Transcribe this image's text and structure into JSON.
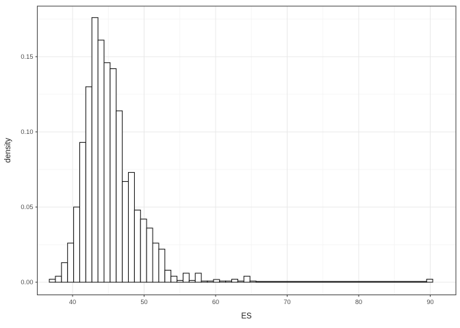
{
  "chart_data": {
    "type": "bar",
    "subtype": "histogram",
    "title": "",
    "xlabel": "ES",
    "ylabel": "density",
    "x_ticks": [
      "40",
      "50",
      "60",
      "70",
      "80",
      "90"
    ],
    "y_ticks": [
      "0.00",
      "0.05",
      "0.10",
      "0.15"
    ],
    "xlim": [
      35.07,
      93.59
    ],
    "ylim": [
      -0.0084,
      0.1836
    ],
    "binwidth": 0.85,
    "grid": "major+minor",
    "legend_position": "none",
    "bars": [
      {
        "x": 36.75,
        "d": 0.002
      },
      {
        "x": 37.6,
        "d": 0.004
      },
      {
        "x": 38.45,
        "d": 0.013
      },
      {
        "x": 39.3,
        "d": 0.026
      },
      {
        "x": 40.15,
        "d": 0.05
      },
      {
        "x": 41.0,
        "d": 0.093
      },
      {
        "x": 41.85,
        "d": 0.13
      },
      {
        "x": 42.7,
        "d": 0.176
      },
      {
        "x": 43.55,
        "d": 0.161
      },
      {
        "x": 44.4,
        "d": 0.146
      },
      {
        "x": 45.25,
        "d": 0.142
      },
      {
        "x": 46.1,
        "d": 0.114
      },
      {
        "x": 46.95,
        "d": 0.067
      },
      {
        "x": 47.8,
        "d": 0.073
      },
      {
        "x": 48.65,
        "d": 0.048
      },
      {
        "x": 49.5,
        "d": 0.042
      },
      {
        "x": 50.35,
        "d": 0.036
      },
      {
        "x": 51.2,
        "d": 0.026
      },
      {
        "x": 52.05,
        "d": 0.022
      },
      {
        "x": 52.9,
        "d": 0.008
      },
      {
        "x": 53.75,
        "d": 0.004
      },
      {
        "x": 54.6,
        "d": 0.0012
      },
      {
        "x": 55.45,
        "d": 0.006
      },
      {
        "x": 56.3,
        "d": 0.0012
      },
      {
        "x": 57.15,
        "d": 0.006
      },
      {
        "x": 58.0,
        "d": 0.0008
      },
      {
        "x": 58.85,
        "d": 0.0008
      },
      {
        "x": 59.7,
        "d": 0.0018
      },
      {
        "x": 60.55,
        "d": 0.0008
      },
      {
        "x": 61.4,
        "d": 0.0008
      },
      {
        "x": 62.25,
        "d": 0.002
      },
      {
        "x": 63.1,
        "d": 0.0008
      },
      {
        "x": 63.95,
        "d": 0.004
      },
      {
        "x": 64.8,
        "d": 0.0008
      },
      {
        "x": 89.5,
        "d": 0.002
      }
    ],
    "zero_run": {
      "from": 65.65,
      "to": 89.5,
      "d": 0.0005
    },
    "colors": {
      "bar_fill": "#ffffff",
      "bar_stroke": "#111111",
      "panel_bg": "#ffffff",
      "panel_border": "#4a4a4a",
      "grid_major": "#e8e8e8",
      "grid_minor": "#f4f4f4",
      "tick_mark": "#333333",
      "tick_label": "#4d4d4d",
      "axis_title": "#1a1a1a"
    }
  }
}
